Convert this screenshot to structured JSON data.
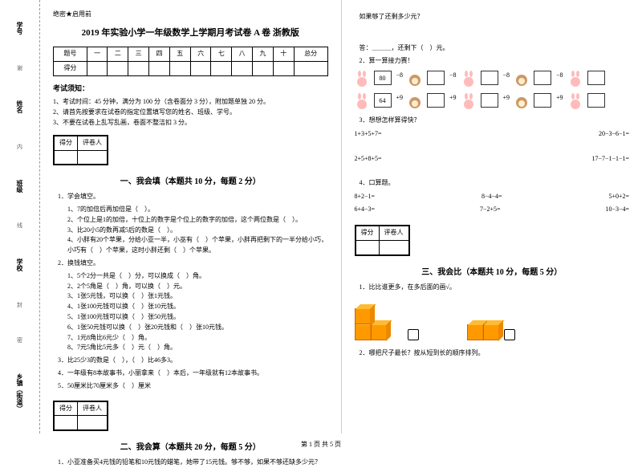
{
  "binding": {
    "items": [
      "学号",
      "姓名",
      "班级",
      "学校",
      "乡镇（街道）"
    ],
    "marks": [
      "谢",
      "内",
      "线",
      "封",
      "密"
    ]
  },
  "secret": "绝密★启用前",
  "title": "2019 年实验小学一年级数学上学期月考试卷 A 卷 浙教版",
  "score_headers": [
    "题号",
    "一",
    "二",
    "三",
    "四",
    "五",
    "六",
    "七",
    "八",
    "九",
    "十",
    "总分"
  ],
  "score_row": "得分",
  "notice_h": "考试须知：",
  "notices": [
    "1、考试时间：45 分钟，满分为 100 分（含卷面分 3 分），附加题单独 20 分。",
    "2、请首先按要求在试卷的指定位置填写您的姓名、班级、学号。",
    "3、不要在试卷上乱写乱画，卷面不整洁扣 3 分。"
  ],
  "grade_labels": [
    "得分",
    "评卷人"
  ],
  "sec1_h": "一、我会填（本题共 10 分，每题 2 分）",
  "q1_h": "1．学会填空。",
  "q1_items": [
    "1、7的加倍后再加倍是（　）。",
    "2、个位上是1的加倍，十位上的数字是个位上的数字的加倍，这个两位数是（　）。",
    "3、比20小5的数再减5后的数是（　）。",
    "4、小胖有20个苹果，分给小亚一半，小巫有（　）个苹果，小胖再把剩下的一半分给小巧，小巧有（　）个苹果，这时小胖还剩（　）个苹果。"
  ],
  "q2_h": "2．换钱填空。",
  "q2_items": [
    "1、5个2分一共是（　）分，可以换成（　）角。",
    "2、2个5角是（　）角，可以换（　）元。",
    "3、1张5元钱，可以换（　）张1元钱。",
    "4、1张100元钱可以换（　）张10元钱。",
    "5、1张100元钱可以换（　）张50元钱。",
    "6、1张50元钱可以换（　）张20元钱和（　）张10元钱。",
    "7、1元8角比6元少（　）角。",
    "8、7元5角比5元多（　）元（　）角。"
  ],
  "q3": "3．比25少3的数是（　），（　）比46多3。",
  "q4": "4．一年级有8本故事书，小丽拿来（　）本后，一年级就有12本故事书。",
  "q5": "5．50厘米比70厘米多（　）厘米",
  "sec2_h": "二、我会算（本题共 20 分，每题 5 分）",
  "q2_1": "1．小亚准备买4元钱的铅笔和10元钱的蜡笔，她带了15元钱。够不够，如果不够还缺多少元？",
  "col2": {
    "enough": "如果够了还剩多少元？",
    "ans": "答：＿＿＿，还剩下（　）元。",
    "q2_2": "2．算一算接力赛！",
    "seq1_start": "80",
    "seq1_ops": [
      "−8",
      "−8",
      "−8",
      "−8"
    ],
    "seq2_start": "64",
    "seq2_ops": [
      "+9",
      "+9",
      "+9",
      "+9"
    ],
    "q2_3": "3．想想怎样算得快？",
    "eqs3": [
      [
        "1+3+5+7=",
        "20−3−6−1="
      ],
      [
        "2+5+8+5=",
        "17−7−1−1−1="
      ]
    ],
    "q2_4": "4．口算题。",
    "eqs4": [
      [
        "8+2−1=",
        "8−4−4=",
        "5+0+2="
      ],
      [
        "6+4−3=",
        "7−2+5=",
        "10−3−4="
      ]
    ],
    "sec3_h": "三、我会比（本题共 10 分，每题 5 分）",
    "q3_1": "1．比比谁更多，在多后面的画√。",
    "q3_2": "2．哪把尺子最长？按从短到长的顺序排列。"
  },
  "footer": "第 1 页 共 5 页"
}
